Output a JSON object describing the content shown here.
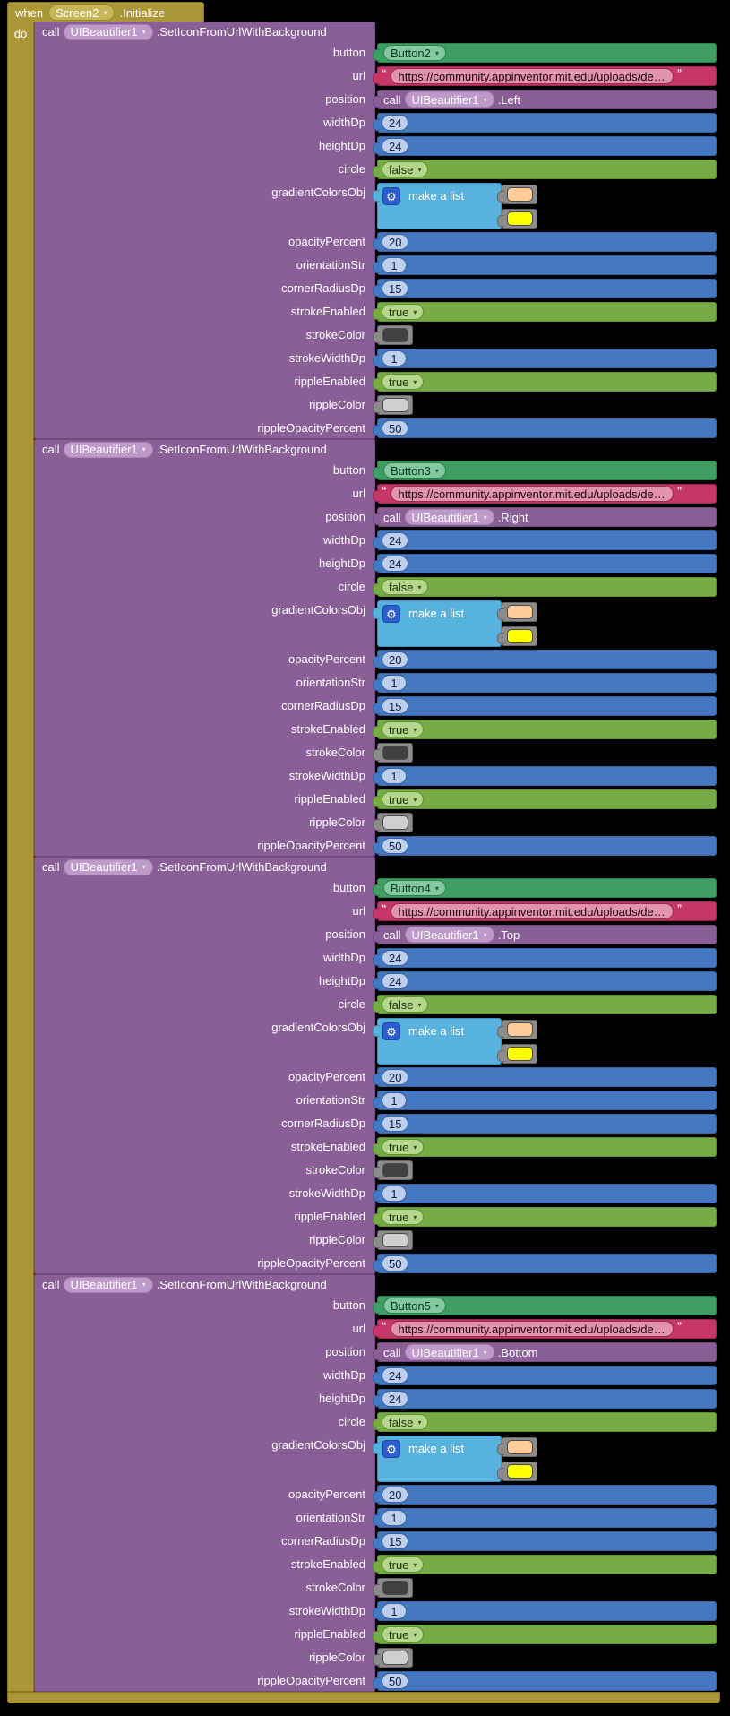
{
  "palette": {
    "event_gold": "#AC9638",
    "method_purple": "#8A5F97",
    "component_green": "#3F9E63",
    "text_pink": "#C43768",
    "math_blue": "#4478C0",
    "logic_green": "#76AC43",
    "list_blue": "#58B2DE",
    "canvas_black": "#000000"
  },
  "event_block": {
    "when_label": "when",
    "component": "Screen2",
    "event_name": ".Initialize",
    "do_label": "do"
  },
  "call_common": {
    "call_label": "call",
    "component": "UIBeautifier1",
    "method": ".SetIconFromUrlWithBackground",
    "labels": {
      "button": "button",
      "url": "url",
      "position": "position",
      "widthDp": "widthDp",
      "heightDp": "heightDp",
      "circle": "circle",
      "gradientColorsObj": "gradientColorsObj",
      "opacityPercent": "opacityPercent",
      "orientationStr": "orientationStr",
      "cornerRadiusDp": "cornerRadiusDp",
      "strokeEnabled": "strokeEnabled",
      "strokeColor": "strokeColor",
      "strokeWidthDp": "strokeWidthDp",
      "rippleEnabled": "rippleEnabled",
      "rippleColor": "rippleColor",
      "rippleOpacityPercent": "rippleOpacityPercent"
    },
    "url_open_quote": "“",
    "url_close_quote": "”",
    "url_value": "https://community.appinventor.mit.edu/uploads/de…",
    "position_call_label": "call",
    "position_component": "UIBeautifier1",
    "widthDp": "24",
    "heightDp": "24",
    "circle": "false",
    "make_a_list_label": "make a list",
    "gradient_color_1": "#FFCC99",
    "gradient_color_2": "#FFFF00",
    "opacityPercent": "20",
    "orientationStr": "1",
    "cornerRadiusDp": "15",
    "strokeEnabled": "true",
    "strokeColor_swatch": "#414141",
    "strokeWidthDp": "1",
    "rippleEnabled": "true",
    "rippleColor_swatch": "#CFCFCF",
    "rippleOpacityPercent": "50"
  },
  "call_instances": [
    {
      "button": "Button2",
      "position_method": ".Left"
    },
    {
      "button": "Button3",
      "position_method": ".Right"
    },
    {
      "button": "Button4",
      "position_method": ".Top"
    },
    {
      "button": "Button5",
      "position_method": ".Bottom"
    }
  ]
}
